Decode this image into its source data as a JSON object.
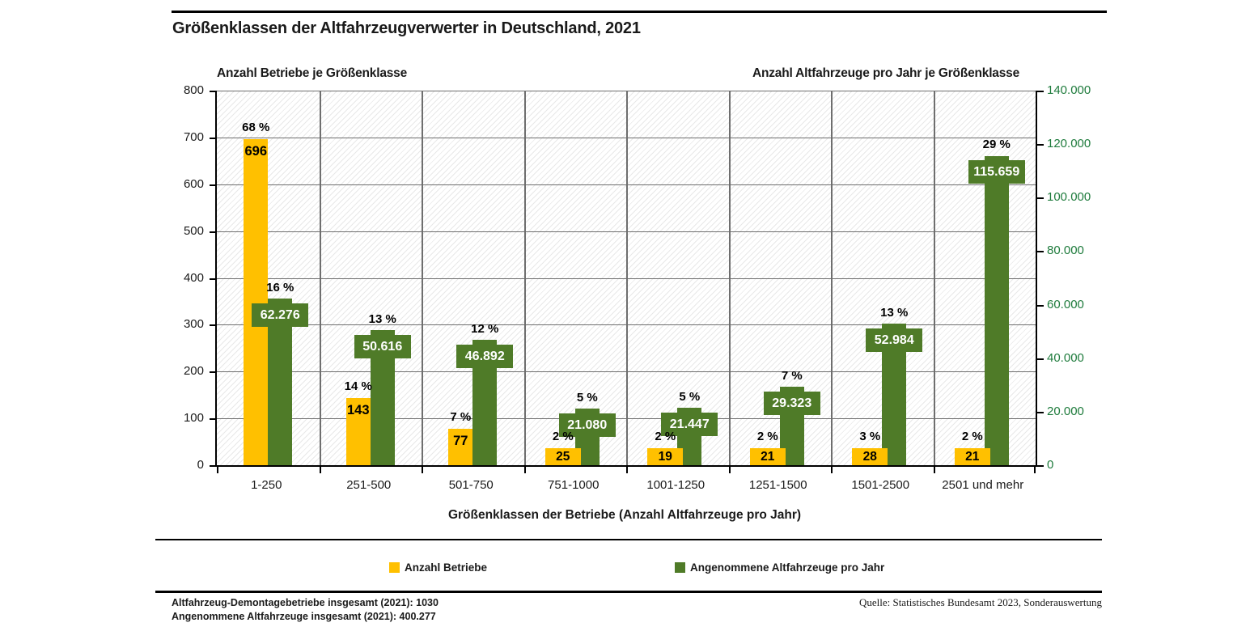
{
  "title": "Größenklassen der Altfahrzeugverwerter in Deutschland, 2021",
  "panel_titles": {
    "left": "Anzahl Betriebe je Größenklasse",
    "right": "Anzahl Altfahrzeuge pro Jahr je Größenklasse"
  },
  "chart_data": {
    "type": "bar",
    "categories": [
      "1-250",
      "251-500",
      "501-750",
      "751-1000",
      "1001-1250",
      "1251-1500",
      "1501-2500",
      "2501 und mehr"
    ],
    "series": [
      {
        "name": "Anzahl Betriebe",
        "axis": "left",
        "color": "#FFC000",
        "values": [
          696,
          143,
          77,
          25,
          19,
          21,
          28,
          21
        ],
        "value_labels": [
          "696",
          "143",
          "77",
          "25",
          "19",
          "21",
          "28",
          "21"
        ],
        "percent_labels": [
          "68 %",
          "14 %",
          "7 %",
          "2 %",
          "2 %",
          "2 %",
          "3 %",
          "2 %"
        ]
      },
      {
        "name": "Angenommene Altfahrzeuge pro Jahr",
        "axis": "right",
        "color": "#4F7B28",
        "values": [
          62276,
          50616,
          46892,
          21080,
          21447,
          29323,
          52984,
          115659
        ],
        "value_labels": [
          "62.276",
          "50.616",
          "46.892",
          "21.080",
          "21.447",
          "29.323",
          "52.984",
          "115.659"
        ],
        "percent_labels": [
          "16 %",
          "13 %",
          "12 %",
          "5 %",
          "5 %",
          "7 %",
          "13 %",
          "29 %"
        ]
      }
    ],
    "left_axis": {
      "min": 0,
      "max": 800,
      "ticks": [
        "800",
        "700",
        "600",
        "500",
        "400",
        "300",
        "200",
        "100",
        "0"
      ],
      "color": "#1a1a1a"
    },
    "right_axis": {
      "min": 0,
      "max": 140000,
      "ticks": [
        "140.000",
        "120.000",
        "100.000",
        "80.000",
        "60.000",
        "40.000",
        "20.000",
        "0"
      ],
      "color": "#1E7B3C"
    },
    "xlabel": "Größenklassen der Betriebe (Anzahl Altfahrzeuge pro Jahr)",
    "grid": "horizontal major (left axis) + vertical category separators",
    "plot_background": "diagonal hatch",
    "legend_position": "bottom"
  },
  "legend": {
    "items": [
      {
        "label": "Anzahl Betriebe",
        "color": "#FFC000"
      },
      {
        "label": "Angenommene Altfahrzeuge pro Jahr",
        "color": "#4F7B28"
      }
    ]
  },
  "footer": {
    "left_lines": [
      "Altfahrzeug-Demontagebetriebe insgesamt (2021): 1030",
      "Angenommene Altfahrzeuge insgesamt (2021): 400.277"
    ],
    "source": "Quelle: Statistisches Bundesamt 2023, Sonderauswertung"
  }
}
